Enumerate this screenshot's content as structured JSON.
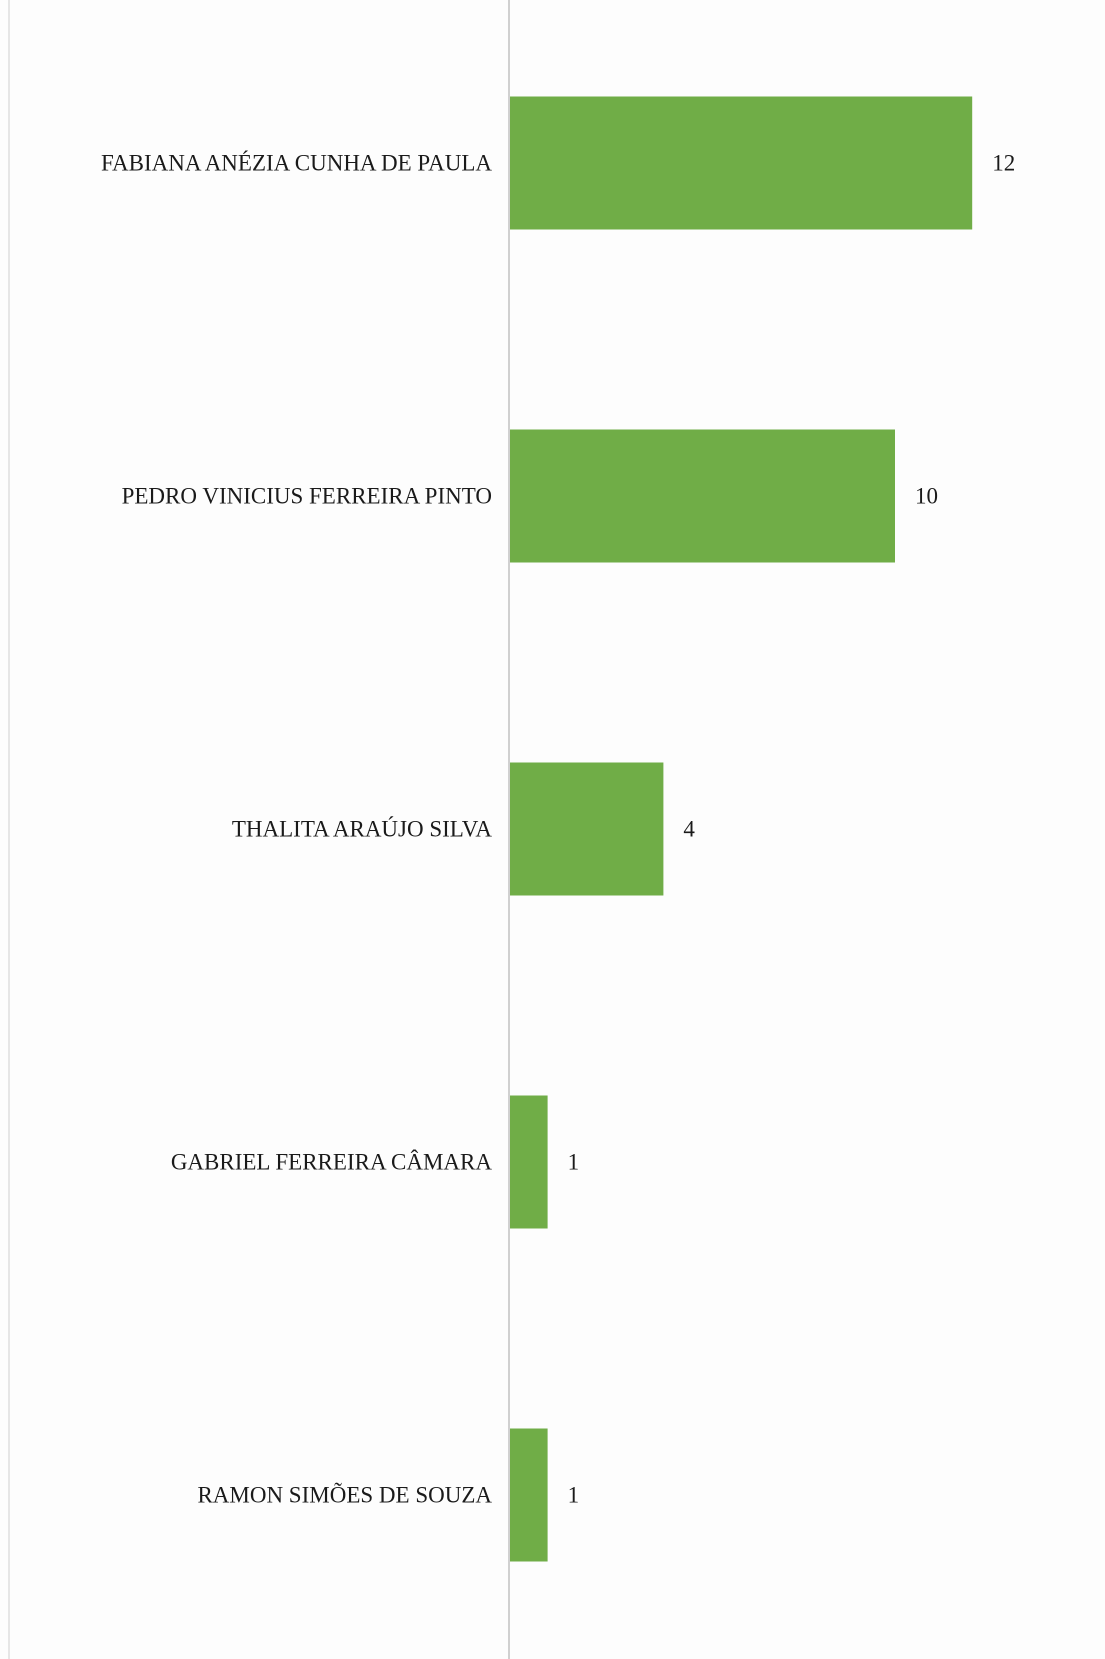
{
  "chart_data": {
    "type": "bar",
    "orientation": "horizontal",
    "categories": [
      "FABIANA ANÉZIA CUNHA DE PAULA",
      "PEDRO VINICIUS FERREIRA PINTO",
      "THALITA ARAÚJO SILVA",
      "GABRIEL FERREIRA CÂMARA",
      "RAMON SIMÕES DE SOUZA"
    ],
    "values": [
      12,
      10,
      4,
      1,
      1
    ],
    "data_labels": [
      "12",
      "10",
      "4",
      "1",
      "1"
    ],
    "title": "",
    "xlabel": "",
    "ylabel": "",
    "xlim": [
      0,
      12
    ],
    "grid": false,
    "legend": "none",
    "bar_color": "#70ad47"
  }
}
